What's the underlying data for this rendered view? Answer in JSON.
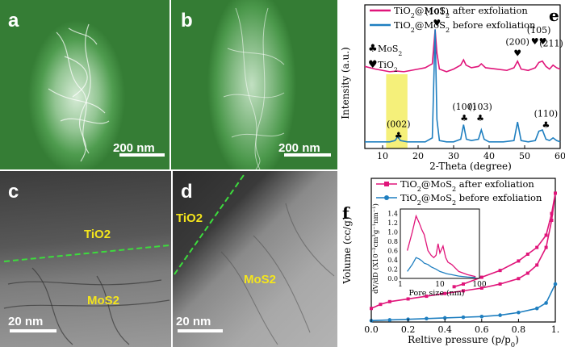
{
  "panels": {
    "a": {
      "label": "a",
      "scale_bar": "200 nm"
    },
    "b": {
      "label": "b",
      "scale_bar": "200 nm"
    },
    "c": {
      "label": "c",
      "scale_bar": "20 nm",
      "region_top": "TiO2",
      "region_bottom": "MoS2"
    },
    "d": {
      "label": "d",
      "scale_bar": "20 nm",
      "region_top": "TiO2",
      "region_bottom": "MoS2"
    },
    "e": {
      "label": "e"
    },
    "f": {
      "label": "f"
    }
  },
  "colors": {
    "after": "#e0157a",
    "before": "#1f7fc0",
    "highlight": "#f5f07a",
    "interface": "#3ddc3d",
    "region_label": "#f4e51c"
  },
  "chart_data": [
    {
      "type": "line",
      "panel": "e",
      "xlabel": "2-Theta (degree)",
      "ylabel": "Intensity (a.u.)",
      "xlim": [
        5,
        60
      ],
      "xticks": [
        10,
        20,
        30,
        40,
        50,
        60
      ],
      "legend": "top-right",
      "series": [
        {
          "name": "TiO2@MoS2 after exfoliation",
          "color": "#e0157a",
          "x": [
            5,
            8,
            10,
            12,
            14,
            16,
            18,
            20,
            22,
            24,
            24.8,
            25.3,
            26,
            28,
            30,
            32,
            32.8,
            33.5,
            35,
            37,
            37.8,
            39,
            42,
            45,
            47,
            48,
            49,
            51,
            53,
            54,
            55,
            56,
            57,
            58,
            59,
            60
          ],
          "y": [
            0.62,
            0.6,
            0.59,
            0.58,
            0.585,
            0.58,
            0.59,
            0.6,
            0.61,
            0.64,
            0.9,
            0.72,
            0.6,
            0.58,
            0.6,
            0.63,
            0.67,
            0.63,
            0.61,
            0.62,
            0.64,
            0.61,
            0.6,
            0.59,
            0.61,
            0.66,
            0.6,
            0.59,
            0.61,
            0.65,
            0.66,
            0.62,
            0.6,
            0.63,
            0.61,
            0.6
          ]
        },
        {
          "name": "TiO2@MoS2 before exfoliation",
          "color": "#1f7fc0",
          "x": [
            5,
            8,
            10,
            12,
            13.5,
            14.3,
            15,
            17,
            20,
            22,
            24,
            24.8,
            25.3,
            26,
            28,
            30,
            32,
            32.8,
            33.6,
            35,
            37,
            37.8,
            38.6,
            40,
            44,
            47,
            48,
            49,
            51,
            53,
            54,
            55,
            56,
            57,
            58,
            59,
            60
          ],
          "y": [
            0.05,
            0.05,
            0.05,
            0.05,
            0.06,
            0.09,
            0.06,
            0.05,
            0.05,
            0.05,
            0.08,
            0.9,
            0.22,
            0.06,
            0.05,
            0.05,
            0.07,
            0.18,
            0.07,
            0.06,
            0.07,
            0.14,
            0.07,
            0.05,
            0.05,
            0.06,
            0.2,
            0.06,
            0.05,
            0.06,
            0.13,
            0.14,
            0.07,
            0.06,
            0.08,
            0.06,
            0.05
          ]
        }
      ],
      "highlight_band": [
        11,
        17
      ],
      "symbol_legend": [
        {
          "symbol": "♣",
          "label": "MoS2"
        },
        {
          "symbol": "♥",
          "label": "TiO2"
        }
      ],
      "annotations": [
        {
          "text": "(101)",
          "x": 25.3,
          "y": 1.0
        },
        {
          "text": "(200)",
          "x": 48,
          "y": 0.77
        },
        {
          "text": "(105)",
          "x": 54,
          "y": 0.86
        },
        {
          "text": "(211)",
          "x": 57.5,
          "y": 0.76
        },
        {
          "text": "(100)",
          "x": 33,
          "y": 0.28
        },
        {
          "text": "(103)",
          "x": 37.5,
          "y": 0.28
        },
        {
          "text": "(110)",
          "x": 56,
          "y": 0.23
        },
        {
          "text": "(002)",
          "x": 14.5,
          "y": 0.15
        }
      ]
    },
    {
      "type": "line",
      "panel": "f",
      "xlabel": "Reltive pressure (p/p0)",
      "ylabel": "Volume (cc/g)",
      "xlim": [
        0,
        1
      ],
      "xticks": [
        "0.0",
        "0.2",
        "0.4",
        "0.6",
        "0.8",
        "1."
      ],
      "legend": "top-left",
      "series": [
        {
          "name": "TiO2@MoS2 after exfoliation",
          "color": "#e0157a",
          "x": [
            0.0,
            0.05,
            0.1,
            0.2,
            0.3,
            0.4,
            0.5,
            0.6,
            0.7,
            0.8,
            0.85,
            0.9,
            0.95,
            0.98,
            1.0,
            0.98,
            0.95,
            0.9,
            0.85,
            0.8,
            0.7,
            0.6,
            0.5,
            0.45
          ],
          "y": [
            0.1,
            0.13,
            0.15,
            0.17,
            0.19,
            0.21,
            0.23,
            0.25,
            0.28,
            0.32,
            0.36,
            0.42,
            0.55,
            0.75,
            0.95,
            0.8,
            0.64,
            0.55,
            0.5,
            0.45,
            0.38,
            0.33,
            0.28,
            0.26
          ]
        },
        {
          "name": "TiO2@MoS2 before exfoliation",
          "color": "#1f7fc0",
          "x": [
            0.0,
            0.1,
            0.2,
            0.3,
            0.4,
            0.5,
            0.6,
            0.7,
            0.8,
            0.9,
            0.95,
            1.0
          ],
          "y": [
            0.01,
            0.015,
            0.02,
            0.025,
            0.03,
            0.035,
            0.04,
            0.05,
            0.07,
            0.1,
            0.14,
            0.28
          ]
        }
      ],
      "inset": {
        "xlabel": "Pore size (nm)",
        "ylabel": "dV/dD (X10⁻²cm³g⁻¹nm⁻¹)",
        "xscale": "log",
        "xticks": [
          "1",
          "10",
          "100"
        ],
        "yticks": [
          "0.0",
          "0.2",
          "0.4",
          "0.6",
          "0.8",
          "1.0",
          "1.2",
          "1.4"
        ],
        "ylim": [
          0,
          1.5
        ],
        "series": [
          {
            "name": "TiO2@MoS2 after exfoliation",
            "color": "#e0157a",
            "x": [
              1.5,
              2,
              2.5,
              3,
              3.5,
              4,
              5,
              6,
              7,
              8,
              9,
              10,
              12,
              14,
              16,
              20,
              30,
              50,
              80
            ],
            "y": [
              0.6,
              1.0,
              1.35,
              1.2,
              1.05,
              0.95,
              0.6,
              0.5,
              0.45,
              0.5,
              0.75,
              0.55,
              0.7,
              0.45,
              0.35,
              0.3,
              0.15,
              0.08,
              0.04
            ]
          },
          {
            "name": "TiO2@MoS2 before exfoliation",
            "color": "#1f7fc0",
            "x": [
              1.5,
              2,
              2.5,
              3,
              3.5,
              4,
              5,
              6,
              8,
              10,
              15,
              20,
              30,
              50,
              80
            ],
            "y": [
              0.15,
              0.3,
              0.45,
              0.42,
              0.38,
              0.33,
              0.3,
              0.25,
              0.2,
              0.15,
              0.1,
              0.08,
              0.05,
              0.03,
              0.02
            ]
          }
        ]
      }
    }
  ]
}
